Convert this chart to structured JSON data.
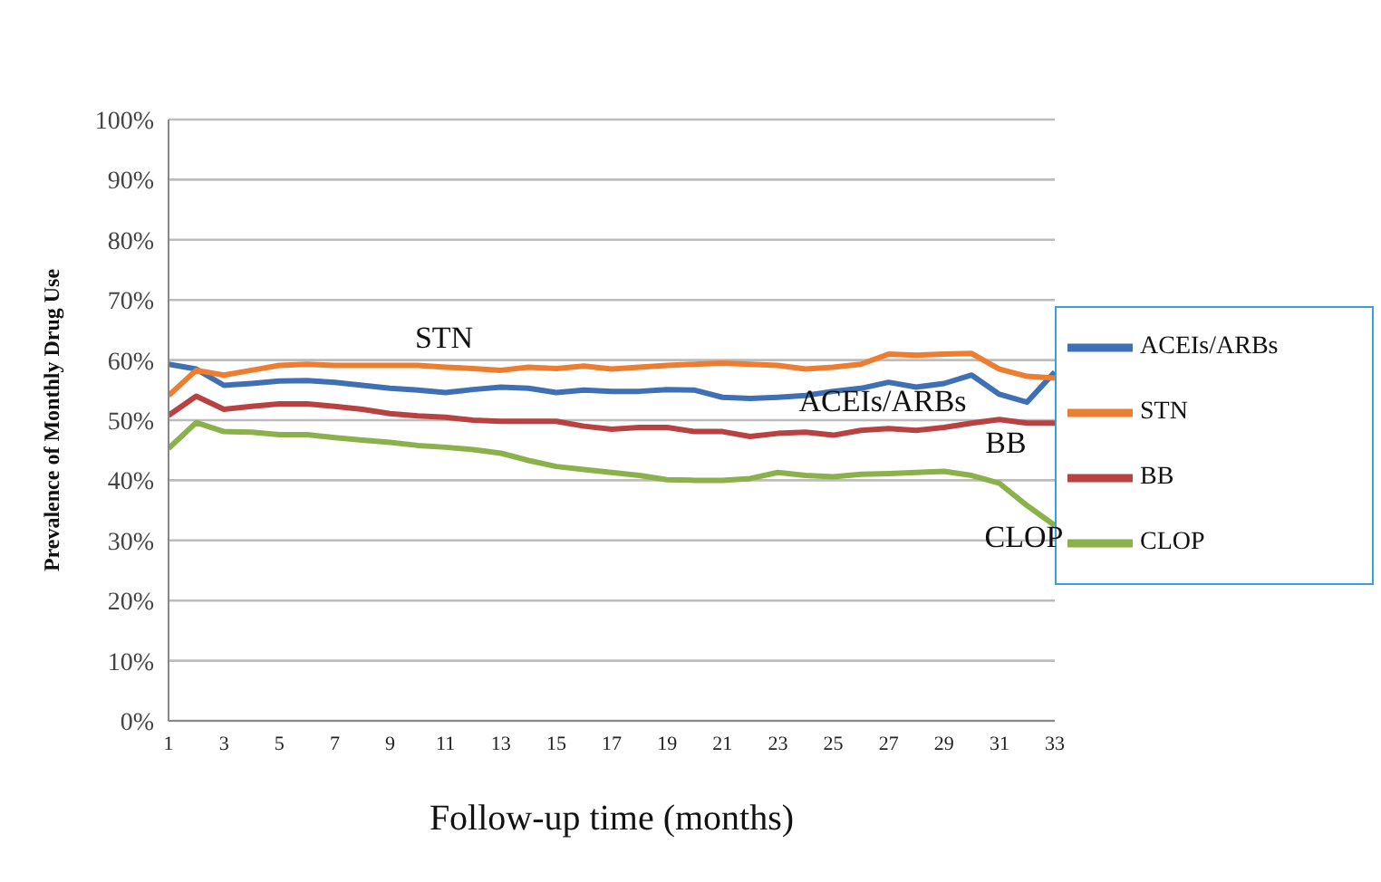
{
  "chart_data": {
    "type": "line",
    "ylabel": "Prevalence of Monthly  Drug Use",
    "xlabel": "Follow-up time (months)",
    "x": [
      1,
      2,
      3,
      4,
      5,
      6,
      7,
      8,
      9,
      10,
      11,
      12,
      13,
      14,
      15,
      16,
      17,
      18,
      19,
      20,
      21,
      22,
      23,
      24,
      25,
      26,
      27,
      28,
      29,
      30,
      31,
      32,
      33
    ],
    "xlim": [
      1,
      33
    ],
    "xticks": [
      1,
      3,
      5,
      7,
      9,
      11,
      13,
      15,
      17,
      19,
      21,
      23,
      25,
      27,
      29,
      31,
      33
    ],
    "ylim": [
      0,
      1
    ],
    "yticks": [
      {
        "value": 0,
        "label": "0%"
      },
      {
        "value": 0.1,
        "label": "10%"
      },
      {
        "value": 0.2,
        "label": "20%"
      },
      {
        "value": 0.3,
        "label": "30%"
      },
      {
        "value": 0.4,
        "label": "40%"
      },
      {
        "value": 0.5,
        "label": "50%"
      },
      {
        "value": 0.6,
        "label": "60%"
      },
      {
        "value": 0.7,
        "label": "70%"
      },
      {
        "value": 0.8,
        "label": "80%"
      },
      {
        "value": 0.9,
        "label": "90%"
      },
      {
        "value": 1,
        "label": "100%"
      }
    ],
    "grid": "y",
    "legend": "right",
    "marker": "none",
    "series": [
      {
        "name": "ACEIs/ARBs",
        "color": "#3f70b5",
        "values": [
          0.593,
          0.585,
          0.558,
          0.561,
          0.565,
          0.566,
          0.563,
          0.558,
          0.553,
          0.55,
          0.546,
          0.551,
          0.555,
          0.553,
          0.546,
          0.55,
          0.548,
          0.548,
          0.551,
          0.55,
          0.538,
          0.536,
          0.538,
          0.541,
          0.548,
          0.553,
          0.563,
          0.555,
          0.561,
          0.575,
          0.543,
          0.53,
          0.58
        ]
      },
      {
        "name": "STN",
        "color": "#ed7d31",
        "values": [
          0.541,
          0.583,
          0.575,
          0.583,
          0.591,
          0.593,
          0.591,
          0.591,
          0.591,
          0.591,
          0.588,
          0.586,
          0.583,
          0.588,
          0.586,
          0.59,
          0.585,
          0.588,
          0.591,
          0.593,
          0.595,
          0.593,
          0.591,
          0.585,
          0.588,
          0.593,
          0.61,
          0.608,
          0.61,
          0.611,
          0.585,
          0.573,
          0.57
        ]
      },
      {
        "name": "BB",
        "color": "#b84242",
        "values": [
          0.508,
          0.54,
          0.518,
          0.523,
          0.527,
          0.527,
          0.523,
          0.518,
          0.511,
          0.507,
          0.505,
          0.5,
          0.498,
          0.498,
          0.498,
          0.49,
          0.485,
          0.488,
          0.488,
          0.481,
          0.481,
          0.473,
          0.478,
          0.48,
          0.475,
          0.483,
          0.486,
          0.483,
          0.488,
          0.495,
          0.501,
          0.495,
          0.495
        ]
      },
      {
        "name": "CLOP",
        "color": "#8bb14a",
        "values": [
          0.453,
          0.496,
          0.481,
          0.48,
          0.476,
          0.476,
          0.471,
          0.467,
          0.463,
          0.458,
          0.455,
          0.451,
          0.445,
          0.433,
          0.423,
          0.418,
          0.413,
          0.408,
          0.401,
          0.4,
          0.4,
          0.403,
          0.413,
          0.408,
          0.406,
          0.41,
          0.411,
          0.413,
          0.415,
          0.408,
          0.395,
          0.358,
          0.325
        ]
      }
    ],
    "annotations": [
      "STN",
      "ACEIs/ARBs",
      "BB",
      "CLOP"
    ]
  }
}
